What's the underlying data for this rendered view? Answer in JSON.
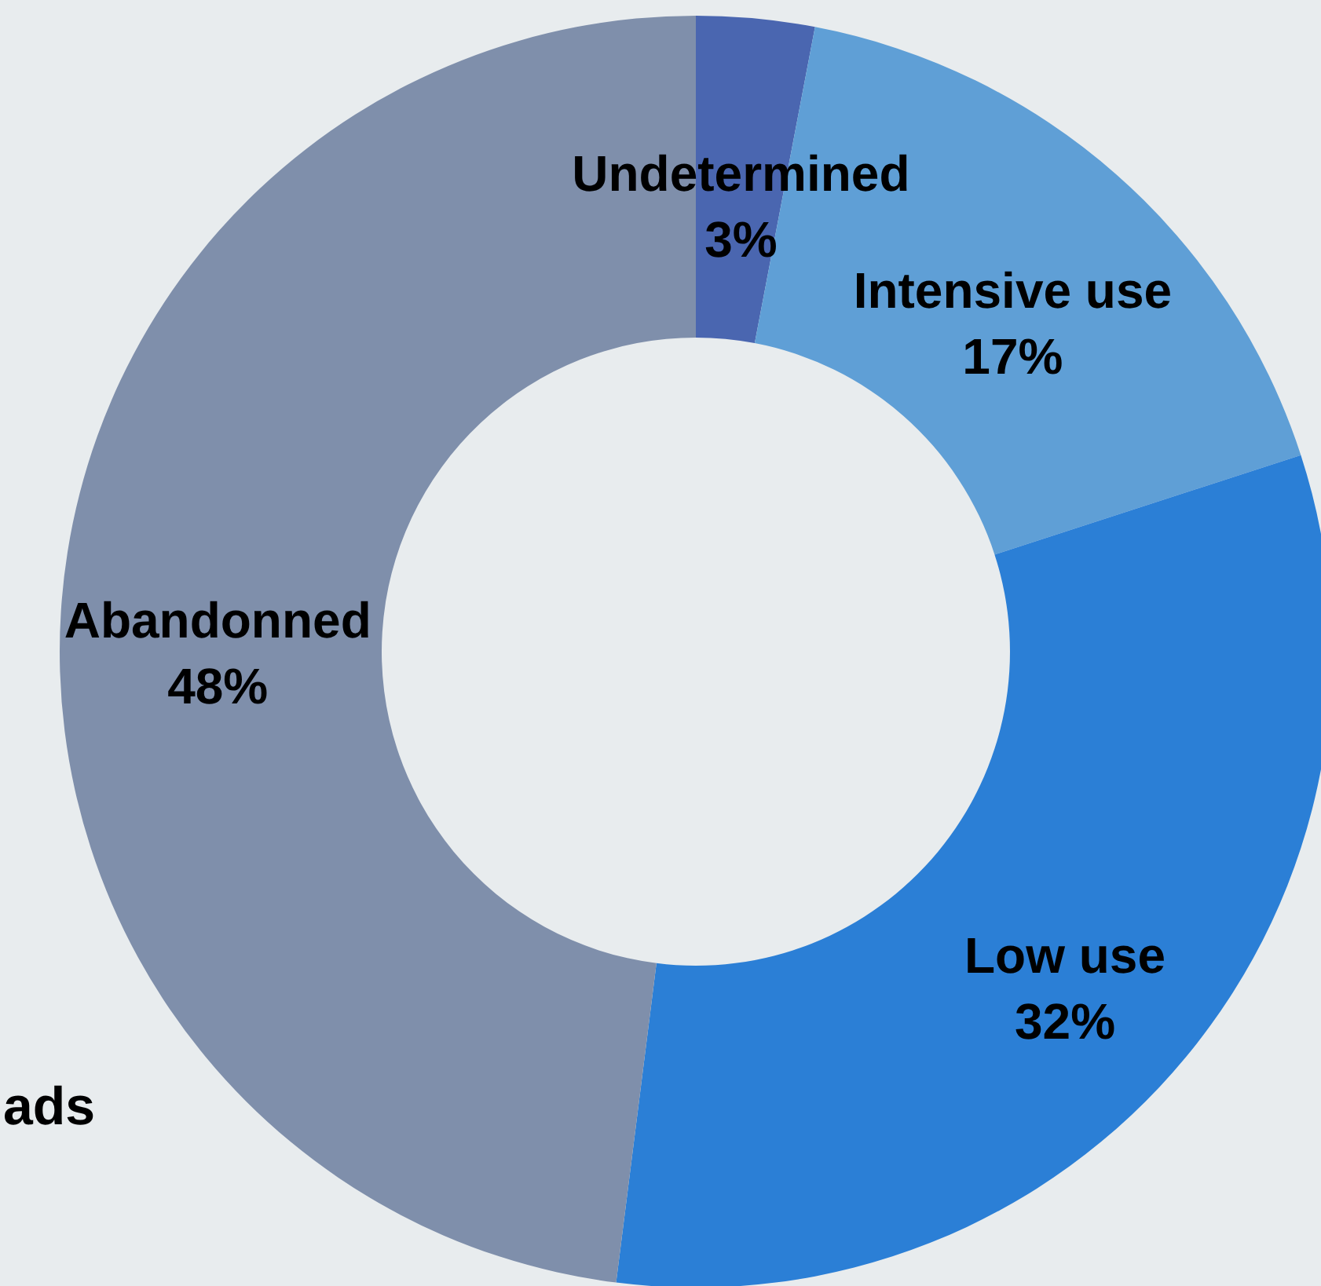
{
  "chart_data": {
    "type": "donut",
    "categories": [
      "Undetermined",
      "Intensive use",
      "Low use",
      "Abandonned"
    ],
    "values": [
      3,
      17,
      32,
      48
    ],
    "value_labels": [
      "3%",
      "17%",
      "32%",
      "48%"
    ],
    "colors": [
      "#4a66b0",
      "#5f9fd6",
      "#2b7fd6",
      "#7f8fab"
    ],
    "annotations": [
      "ads"
    ]
  }
}
